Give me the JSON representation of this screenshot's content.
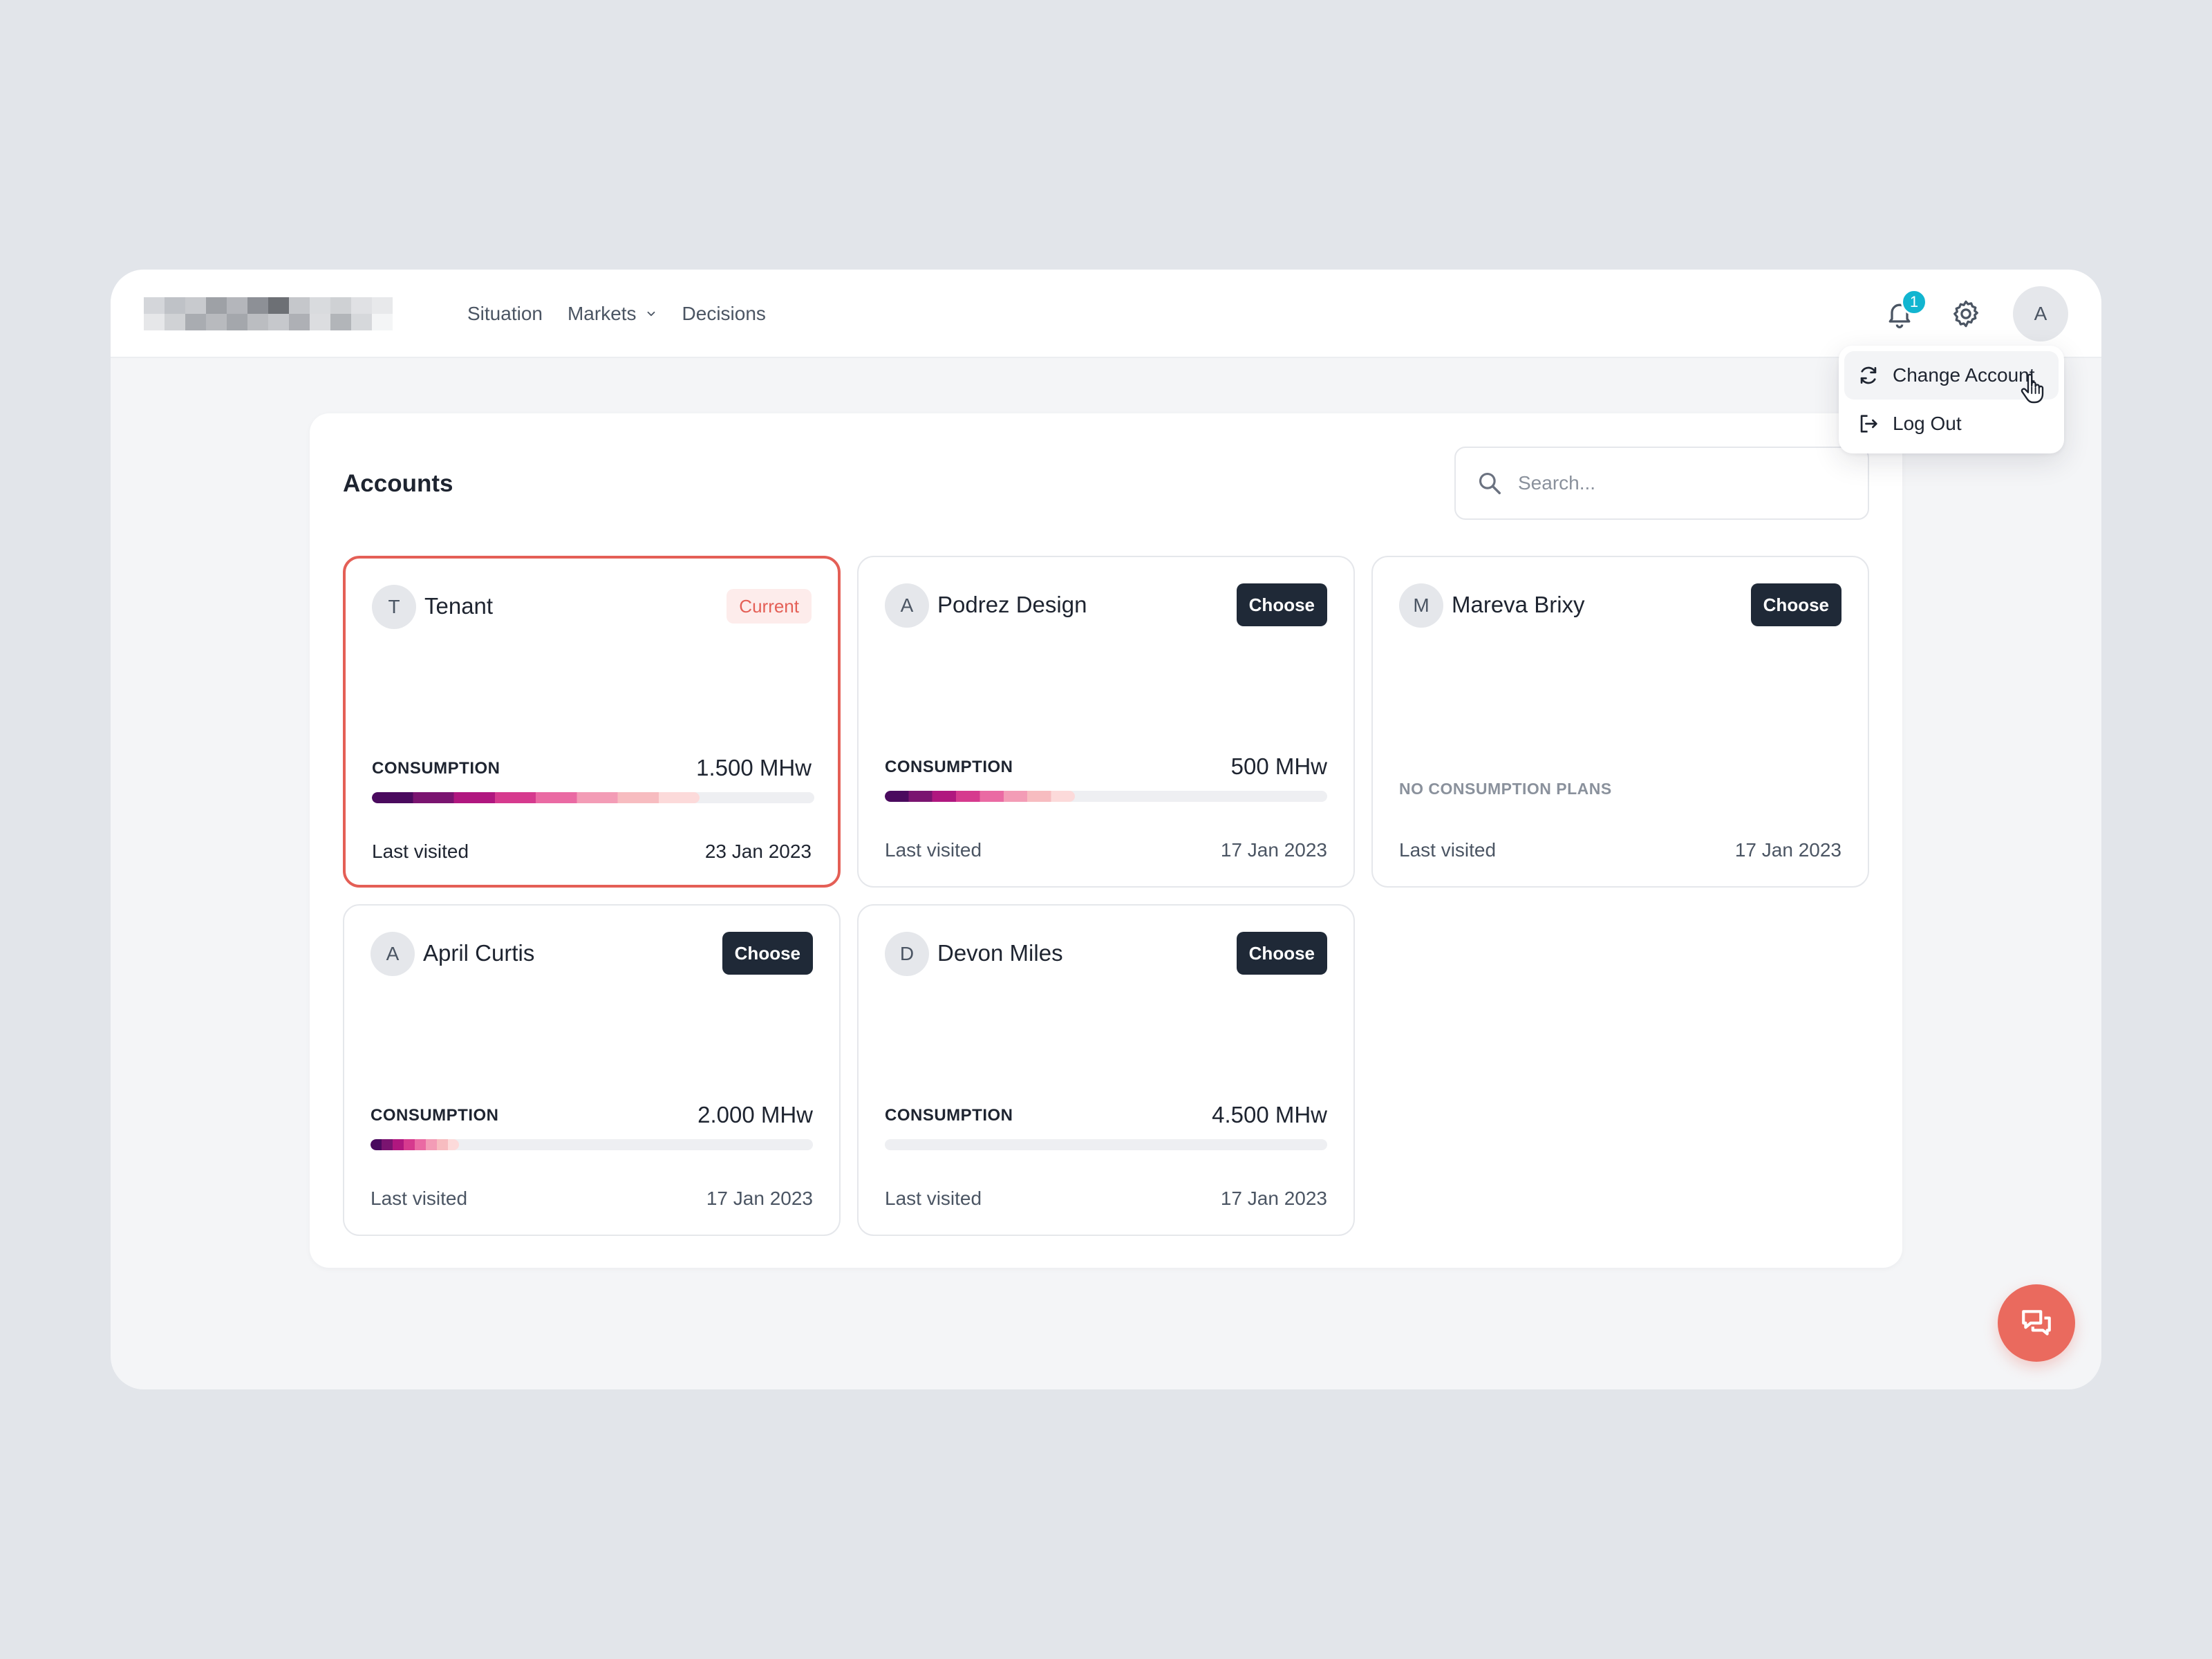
{
  "nav": {
    "items": [
      {
        "label": "Situation"
      },
      {
        "label": "Markets"
      },
      {
        "label": "Decisions"
      }
    ]
  },
  "header": {
    "notification_count": "1",
    "avatar_initial": "A"
  },
  "menu": {
    "change_account": "Change Account",
    "log_out": "Log Out"
  },
  "panel": {
    "title": "Accounts",
    "search_placeholder": "Search..."
  },
  "accounts": [
    {
      "initial": "T",
      "name": "Tenant",
      "status": "Current",
      "consumption_label": "CONSUMPTION",
      "consumption": "1.500 MHw",
      "consumption_fill": 0.74,
      "last_visited_label": "Last visited",
      "last_visited": "23 Jan 2023"
    },
    {
      "initial": "A",
      "name": "Podrez Design",
      "action": "Choose",
      "consumption_label": "CONSUMPTION",
      "consumption": "500 MHw",
      "consumption_fill": 0.43,
      "last_visited_label": "Last visited",
      "last_visited": "17 Jan 2023"
    },
    {
      "initial": "M",
      "name": "Mareva Brixy",
      "action": "Choose",
      "no_plans": "NO CONSUMPTION PLANS",
      "last_visited_label": "Last visited",
      "last_visited": "17 Jan 2023"
    },
    {
      "initial": "A",
      "name": "April Curtis",
      "action": "Choose",
      "consumption_label": "CONSUMPTION",
      "consumption": "2.000 MHw",
      "consumption_fill": 0.2,
      "last_visited_label": "Last visited",
      "last_visited": "17 Jan 2023"
    },
    {
      "initial": "D",
      "name": "Devon Miles",
      "action": "Choose",
      "consumption_label": "CONSUMPTION",
      "consumption": "4.500 MHw",
      "consumption_fill": 0,
      "last_visited_label": "Last visited",
      "last_visited": "17 Jan 2023"
    }
  ],
  "colors": {
    "accent": "#e45f56",
    "badge": "#12b5d0",
    "button_dark": "#1f2937",
    "gradient": [
      "#4a0a5e",
      "#7a1470",
      "#b0177f",
      "#d63a8e",
      "#ea6aa3",
      "#f39cb6",
      "#f7bcc0",
      "#fcdada"
    ]
  },
  "icons": {
    "notification": "bell-icon",
    "settings": "gear-icon",
    "change_account": "refresh-icon",
    "log_out": "logout-icon",
    "search": "search-icon",
    "chat": "chat-icon",
    "markets_dropdown": "chevron-down-icon"
  }
}
